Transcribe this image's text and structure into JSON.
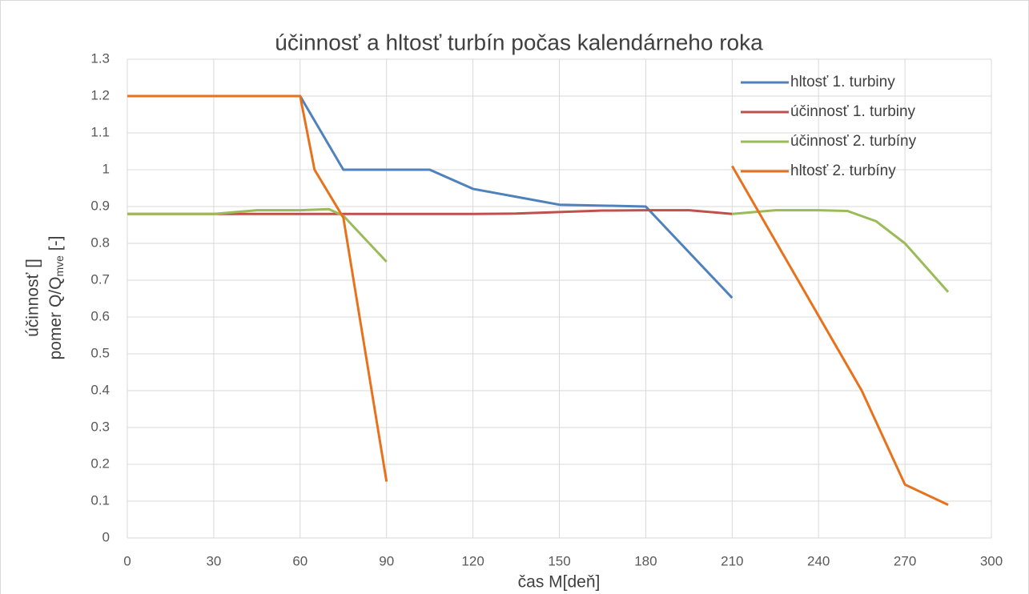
{
  "chart_data": {
    "type": "line",
    "title": "účinnosť a hltosť turbín počas kalendárneho roka",
    "xlabel": "čas M[deň]",
    "ylabel": {
      "line1": "účinnosť []",
      "line2": "pomer Q/Q",
      "sub": "mve",
      "tail": " [-]"
    },
    "xlim": [
      0,
      300
    ],
    "xticks": [
      0,
      30,
      60,
      90,
      120,
      150,
      180,
      210,
      240,
      270,
      300
    ],
    "ylim": [
      0,
      1.3
    ],
    "yticks": [
      0,
      0.1,
      0.2,
      0.3,
      0.4,
      0.5,
      0.6,
      0.7,
      0.8,
      0.9,
      1,
      1.1,
      1.2,
      1.3
    ],
    "grid": true,
    "legend": "upper right",
    "series": [
      {
        "name": "hltosť 1. turbiny",
        "color": "#4f81bd",
        "x": [
          0,
          60,
          75,
          90,
          105,
          120,
          150,
          180,
          210
        ],
        "values": [
          1.2,
          1.2,
          1.0,
          1.0,
          1.0,
          0.948,
          0.905,
          0.9,
          0.652
        ]
      },
      {
        "name": "účinnosť 1. turbiny",
        "color": "#c0504d",
        "x": [
          0,
          30,
          60,
          90,
          120,
          135,
          150,
          165,
          180,
          195,
          210
        ],
        "values": [
          0.88,
          0.88,
          0.88,
          0.88,
          0.88,
          0.881,
          0.885,
          0.889,
          0.89,
          0.89,
          0.88
        ]
      },
      {
        "name": "účinnosť 2. turbíny",
        "color": "#9bbb59",
        "x": [
          0,
          30,
          45,
          60,
          70,
          75,
          90,
          null,
          210,
          225,
          240,
          250,
          260,
          270,
          285
        ],
        "values": [
          0.88,
          0.88,
          0.89,
          0.89,
          0.893,
          0.875,
          0.75,
          null,
          0.88,
          0.89,
          0.89,
          0.888,
          0.86,
          0.8,
          0.668
        ]
      },
      {
        "name": "hltosť 2. turbíny",
        "color": "#e8711c",
        "x": [
          0,
          60,
          65,
          75,
          90,
          null,
          210,
          255,
          270,
          285
        ],
        "values": [
          1.2,
          1.2,
          1.0,
          0.87,
          0.153,
          null,
          1.01,
          0.4,
          0.145,
          0.09
        ]
      }
    ]
  }
}
